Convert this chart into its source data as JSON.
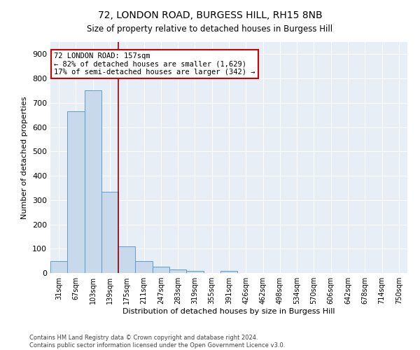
{
  "title": "72, LONDON ROAD, BURGESS HILL, RH15 8NB",
  "subtitle": "Size of property relative to detached houses in Burgess Hill",
  "xlabel": "Distribution of detached houses by size in Burgess Hill",
  "ylabel": "Number of detached properties",
  "footnote1": "Contains HM Land Registry data © Crown copyright and database right 2024.",
  "footnote2": "Contains public sector information licensed under the Open Government Licence v3.0.",
  "categories": [
    "31sqm",
    "67sqm",
    "103sqm",
    "139sqm",
    "175sqm",
    "211sqm",
    "247sqm",
    "283sqm",
    "319sqm",
    "355sqm",
    "391sqm",
    "426sqm",
    "462sqm",
    "498sqm",
    "534sqm",
    "570sqm",
    "606sqm",
    "642sqm",
    "678sqm",
    "714sqm",
    "750sqm"
  ],
  "values": [
    50,
    665,
    750,
    335,
    110,
    50,
    25,
    15,
    10,
    0,
    10,
    0,
    0,
    0,
    0,
    0,
    0,
    0,
    0,
    0,
    0
  ],
  "bar_color": "#c8d9eb",
  "bar_edge_color": "#5b9bd5",
  "vline_x_index": 3.5,
  "vline_color": "#990000",
  "annotation_title": "72 LONDON ROAD: 157sqm",
  "annotation_line1": "← 82% of detached houses are smaller (1,629)",
  "annotation_line2": "17% of semi-detached houses are larger (342) →",
  "annotation_box_color": "#ffffff",
  "annotation_box_edge_color": "#cc0000",
  "bg_color": "#e8eef5",
  "grid_color": "#ffffff",
  "ylim": [
    0,
    950
  ],
  "yticks": [
    0,
    100,
    200,
    300,
    400,
    500,
    600,
    700,
    800,
    900
  ]
}
